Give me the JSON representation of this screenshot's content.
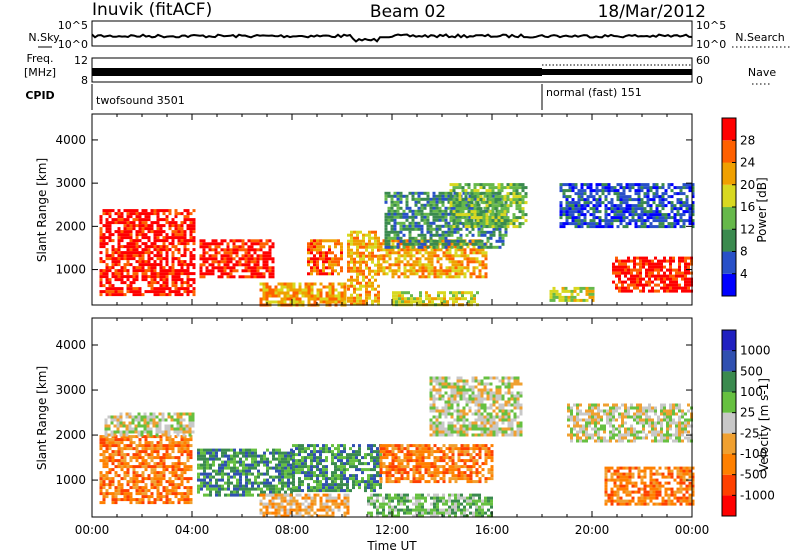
{
  "header": {
    "station": "Inuvik (fitACF)",
    "beam": "Beam 02",
    "date": "18/Mar/2012"
  },
  "strips": {
    "nsky_label": "N.Sky",
    "nsky_ticks": [
      "10^5",
      "10^0"
    ],
    "nsearch_label": "N.Search",
    "nsearch_ticks": [
      "10^5",
      "10^0"
    ],
    "freq_label_1": "Freq.",
    "freq_label_2": "[MHz]",
    "freq_ticks": [
      "12",
      "8"
    ],
    "nave_label": "Nave",
    "nave_ticks": [
      "60",
      "0"
    ],
    "cpid_label": "CPID",
    "cpid_segments": [
      {
        "name": "twofsound 3501",
        "start_hour": 0,
        "end_hour": 18
      },
      {
        "name": "normal (fast) 151",
        "start_hour": 18,
        "end_hour": 24
      }
    ]
  },
  "chart_data": [
    {
      "type": "heatmap",
      "title": "",
      "xlabel": "",
      "ylabel": "Slant Range [km]",
      "xlim": [
        0,
        24
      ],
      "ylim": [
        180,
        4600
      ],
      "x_ticks": [
        "00:00",
        "04:00",
        "08:00",
        "12:00",
        "16:00",
        "20:00",
        "00:00"
      ],
      "y_ticks": [
        1000,
        2000,
        3000,
        4000
      ],
      "colorbar": {
        "label": "Power [dB]",
        "ticks": [
          "4",
          "8",
          "12",
          "16",
          "20",
          "24",
          "28"
        ],
        "colors": [
          "#0000ff",
          "#2850c8",
          "#3a8a4e",
          "#66b84a",
          "#d8d820",
          "#f0a000",
          "#ff6000",
          "#ff0000"
        ]
      },
      "regions": [
        {
          "t0": 0.3,
          "t1": 4.1,
          "r0": 400,
          "r1": 2400,
          "level": 7
        },
        {
          "t0": 4.3,
          "t1": 7.2,
          "r0": 800,
          "r1": 1700,
          "level": 7
        },
        {
          "t0": 6.7,
          "t1": 10.1,
          "r0": 200,
          "r1": 700,
          "level": 5
        },
        {
          "t0": 8.6,
          "t1": 10.0,
          "r0": 900,
          "r1": 1700,
          "level": 6
        },
        {
          "t0": 10.2,
          "t1": 11.5,
          "r0": 200,
          "r1": 1900,
          "level": 5
        },
        {
          "t0": 11.5,
          "t1": 15.8,
          "r0": 800,
          "r1": 1700,
          "level": 5
        },
        {
          "t0": 11.7,
          "t1": 16.6,
          "r0": 1500,
          "r1": 2800,
          "level": 2
        },
        {
          "t0": 14.3,
          "t1": 17.4,
          "r0": 2000,
          "r1": 3000,
          "level": 3
        },
        {
          "t0": 12.0,
          "t1": 15.4,
          "r0": 180,
          "r1": 500,
          "level": 4
        },
        {
          "t0": 18.7,
          "t1": 24.0,
          "r0": 2000,
          "r1": 3000,
          "level": 1
        },
        {
          "t0": 18.3,
          "t1": 20.0,
          "r0": 300,
          "r1": 600,
          "level": 4
        },
        {
          "t0": 20.8,
          "t1": 24.0,
          "r0": 500,
          "r1": 1300,
          "level": 7
        }
      ]
    },
    {
      "type": "heatmap",
      "title": "",
      "xlabel": "Time UT",
      "ylabel": "Slant Range [km]",
      "xlim": [
        0,
        24
      ],
      "ylim": [
        180,
        4600
      ],
      "x_ticks": [
        "00:00",
        "04:00",
        "08:00",
        "12:00",
        "16:00",
        "20:00",
        "00:00"
      ],
      "y_ticks": [
        1000,
        2000,
        3000,
        4000
      ],
      "colorbar": {
        "label": "Velocity [m s-1]",
        "ticks": [
          "1000",
          "500",
          "100",
          "25",
          "-25",
          "-100",
          "-500",
          "-1000"
        ],
        "colors": [
          "#ff0000",
          "#ff4000",
          "#ff8000",
          "#f0a030",
          "#c8c8c8",
          "#66c040",
          "#3a8a4e",
          "#3050b0",
          "#2020c0"
        ]
      },
      "regions": [
        {
          "t0": 0.3,
          "t1": 4.0,
          "r0": 500,
          "r1": 2000,
          "level": 2
        },
        {
          "t0": 0.5,
          "t1": 4.0,
          "r0": 2000,
          "r1": 2500,
          "level": 4
        },
        {
          "t0": 4.2,
          "t1": 8.0,
          "r0": 700,
          "r1": 1700,
          "level": 6
        },
        {
          "t0": 8.0,
          "t1": 11.6,
          "r0": 800,
          "r1": 1800,
          "level": 6
        },
        {
          "t0": 6.7,
          "t1": 10.2,
          "r0": 200,
          "r1": 700,
          "level": 3
        },
        {
          "t0": 11.5,
          "t1": 16.0,
          "r0": 1000,
          "r1": 1800,
          "level": 2
        },
        {
          "t0": 13.5,
          "t1": 17.2,
          "r0": 2000,
          "r1": 3300,
          "level": 4
        },
        {
          "t0": 11.0,
          "t1": 16.0,
          "r0": 180,
          "r1": 700,
          "level": 5
        },
        {
          "t0": 19.0,
          "t1": 24.0,
          "r0": 1900,
          "r1": 2700,
          "level": 4
        },
        {
          "t0": 20.5,
          "t1": 24.0,
          "r0": 500,
          "r1": 1300,
          "level": 2
        }
      ]
    }
  ]
}
